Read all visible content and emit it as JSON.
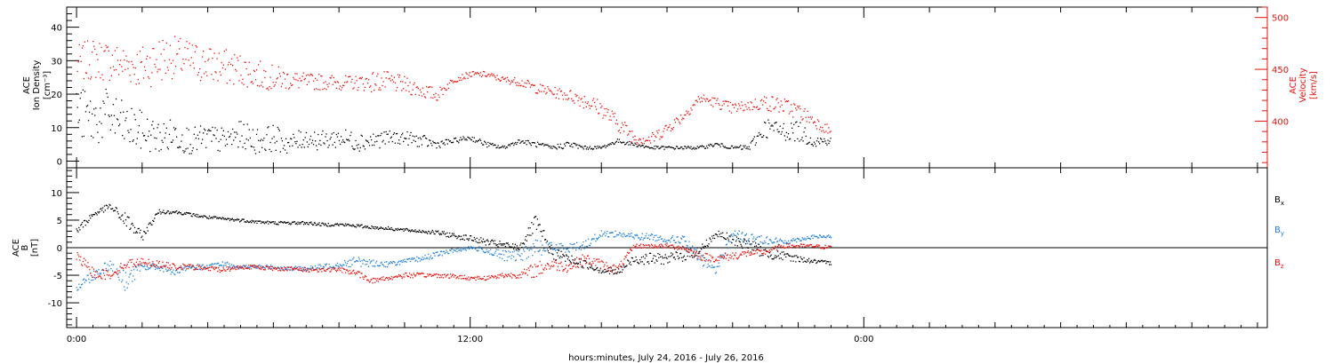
{
  "figure": {
    "xlabel": "hours:minutes, July 24, 2016 - July 26, 2016",
    "x_ticks": [
      {
        "hour": 0,
        "label": "0:00"
      },
      {
        "hour": 12,
        "label": "12:00"
      },
      {
        "hour": 24,
        "label": "0:00"
      }
    ],
    "x_range_hours": [
      -0.3,
      36.3
    ],
    "x_minor_step_hours": 2
  },
  "chart_data": [
    {
      "type": "scatter",
      "panel": "plasma",
      "ylabel_left": [
        "ACE",
        "Ion Density",
        "[cm⁻³]"
      ],
      "ylabel_right": [
        "ACE",
        "Velocity",
        "[km/s]"
      ],
      "ylim_left": [
        -2,
        46
      ],
      "ylim_right": [
        355,
        510
      ],
      "yticks_left": [
        0,
        10,
        20,
        30,
        40
      ],
      "yticks_right": [
        400,
        450,
        500
      ],
      "colors": {
        "density": "#000000",
        "velocity": "#e8110c"
      },
      "series": [
        {
          "axis": "left",
          "color": "#000000",
          "x": [
            0.0,
            0.5,
            1.0,
            1.5,
            2.0,
            2.5,
            3.0,
            3.5,
            4.0,
            4.5,
            5.0,
            5.5,
            6.0,
            6.5,
            7.0,
            7.5,
            8.0,
            8.5,
            9.0,
            9.5,
            10.0,
            10.5,
            11.0,
            11.5,
            12.0,
            12.5,
            13.0,
            13.5,
            14.0,
            14.5,
            15.0,
            15.5,
            16.0,
            16.5,
            17.0,
            17.5,
            18.0,
            18.5,
            19.0,
            19.5,
            20.0,
            20.5,
            21.0,
            21.5,
            22.0,
            22.5,
            23.0
          ],
          "y": [
            15,
            12,
            14,
            10,
            9,
            7,
            8,
            6,
            7,
            6,
            8,
            6,
            7,
            5,
            7,
            6,
            7,
            6,
            6,
            7,
            7,
            6,
            5,
            6,
            7,
            5,
            4,
            6,
            5,
            4,
            5,
            4,
            4,
            6,
            5,
            4,
            4,
            4,
            4,
            5,
            4,
            4,
            10,
            9,
            9,
            6,
            6
          ],
          "scatter": [
            8,
            8,
            8,
            7,
            6,
            5,
            5,
            4,
            4,
            4,
            4,
            4,
            4,
            3,
            3,
            3,
            3,
            3,
            3,
            2,
            2,
            2,
            1.2,
            0.8,
            0.8,
            0.8,
            0.6,
            0.6,
            0.8,
            0.6,
            1.2,
            0.5,
            0.5,
            0.6,
            0.6,
            0.5,
            0.5,
            0.5,
            0.5,
            0.6,
            0.5,
            1,
            3,
            3,
            3,
            2,
            1
          ]
        },
        {
          "axis": "right",
          "color": "#e8110c",
          "x": [
            0.0,
            0.5,
            1.0,
            1.5,
            2.0,
            2.5,
            3.0,
            3.5,
            4.0,
            4.5,
            5.0,
            5.5,
            6.0,
            6.5,
            7.0,
            7.5,
            8.0,
            8.5,
            9.0,
            9.5,
            10.0,
            10.5,
            11.0,
            11.5,
            12.0,
            12.5,
            13.0,
            13.5,
            14.0,
            14.5,
            15.0,
            15.5,
            16.0,
            16.5,
            17.0,
            17.5,
            18.0,
            18.5,
            19.0,
            19.5,
            20.0,
            20.5,
            21.0,
            21.5,
            22.0,
            22.5,
            23.0
          ],
          "y": [
            455,
            460,
            458,
            455,
            452,
            460,
            462,
            458,
            455,
            452,
            450,
            445,
            442,
            440,
            438,
            438,
            437,
            437,
            438,
            438,
            435,
            430,
            425,
            440,
            445,
            445,
            440,
            438,
            432,
            428,
            425,
            420,
            412,
            398,
            385,
            382,
            393,
            405,
            422,
            418,
            412,
            415,
            418,
            415,
            410,
            400,
            390
          ],
          "scatter": [
            18,
            20,
            20,
            18,
            22,
            24,
            20,
            20,
            18,
            18,
            16,
            14,
            12,
            10,
            8,
            8,
            7,
            7,
            10,
            10,
            8,
            8,
            6,
            3,
            3,
            3,
            3,
            4,
            5,
            5,
            6,
            8,
            8,
            8,
            7,
            6,
            6,
            5,
            5,
            5,
            6,
            5,
            8,
            8,
            8,
            6,
            5
          ]
        }
      ]
    },
    {
      "type": "scatter",
      "panel": "magnetic",
      "ylabel_left": [
        "ACE",
        "B",
        "[nT]"
      ],
      "ylim": [
        -14.5,
        14.5
      ],
      "yticks": [
        -10,
        -5,
        0,
        5,
        10
      ],
      "zero_line": true,
      "legend": [
        {
          "label": "B",
          "sub": "x",
          "color": "#000000"
        },
        {
          "label": "B",
          "sub": "y",
          "color": "#1f7fd8"
        },
        {
          "label": "B",
          "sub": "z",
          "color": "#e8110c"
        }
      ],
      "series": [
        {
          "name": "Bx",
          "color": "#000000",
          "x": [
            0.0,
            0.5,
            1.0,
            1.5,
            2.0,
            2.5,
            3.0,
            3.5,
            4.0,
            4.5,
            5.0,
            5.5,
            6.0,
            6.5,
            7.0,
            7.5,
            8.0,
            8.5,
            9.0,
            9.5,
            10.0,
            10.5,
            11.0,
            11.5,
            12.0,
            12.5,
            13.0,
            13.5,
            14.0,
            14.5,
            15.0,
            15.5,
            16.0,
            16.5,
            17.0,
            17.5,
            18.0,
            18.5,
            19.0,
            19.5,
            20.0,
            20.5,
            21.0,
            21.5,
            22.0,
            22.5,
            23.0
          ],
          "y": [
            3,
            6,
            7.5,
            5,
            2,
            6.5,
            6.5,
            6,
            5.5,
            5.2,
            5,
            4.7,
            4.5,
            4.5,
            4.5,
            4.2,
            4.2,
            4,
            3.7,
            3.5,
            3.2,
            3,
            2.7,
            2.2,
            1.7,
            1,
            0.5,
            0,
            4.5,
            -1,
            -2,
            -3,
            -4,
            -4.5,
            -2,
            -2,
            -2,
            -1.5,
            -0.5,
            2.5,
            1.5,
            0.5,
            -1,
            -1.5,
            -2,
            -2.5,
            -2.8
          ],
          "scatter": [
            0.8,
            0.6,
            0.5,
            1.5,
            0.8,
            0.4,
            0.3,
            0.3,
            0.3,
            0.3,
            0.3,
            0.3,
            0.3,
            0.3,
            0.3,
            0.3,
            0.3,
            0.3,
            0.3,
            0.3,
            0.3,
            0.3,
            0.4,
            0.5,
            0.5,
            0.6,
            0.6,
            0.6,
            1.5,
            1.2,
            0.8,
            0.8,
            0.7,
            0.7,
            1,
            1,
            1,
            1,
            1,
            0.6,
            1,
            1.2,
            1,
            0.8,
            0.6,
            0.4,
            0.3
          ]
        },
        {
          "name": "By",
          "color": "#1f7fd8",
          "x": [
            0.0,
            0.5,
            1.0,
            1.5,
            2.0,
            2.5,
            3.0,
            3.5,
            4.0,
            4.5,
            5.0,
            5.5,
            6.0,
            6.5,
            7.0,
            7.5,
            8.0,
            8.5,
            9.0,
            9.5,
            10.0,
            10.5,
            11.0,
            11.5,
            12.0,
            12.5,
            13.0,
            13.5,
            14.0,
            14.5,
            15.0,
            15.5,
            16.0,
            16.5,
            17.0,
            17.5,
            18.0,
            18.5,
            19.0,
            19.5,
            20.0,
            20.5,
            21.0,
            21.5,
            22.0,
            22.5,
            23.0
          ],
          "y": [
            -7,
            -5,
            -3,
            -6,
            -3.5,
            -3.5,
            -4.5,
            -3.5,
            -3.5,
            -3,
            -3.5,
            -3.5,
            -3.5,
            -3.8,
            -3.8,
            -3.5,
            -3,
            -2.5,
            -2.8,
            -3,
            -2.5,
            -2,
            -1.2,
            -0.5,
            0,
            -0.5,
            -1.5,
            -1.5,
            0,
            0,
            0,
            0.5,
            2.5,
            2.5,
            2,
            2,
            1.5,
            1.5,
            -2,
            -4,
            2.5,
            1.5,
            1.5,
            1,
            1.5,
            2,
            2
          ],
          "scatter": [
            1,
            1,
            1,
            2,
            0.8,
            0.6,
            0.6,
            0.5,
            0.5,
            0.5,
            0.4,
            0.4,
            0.4,
            0.4,
            0.4,
            0.5,
            0.6,
            1,
            0.6,
            0.5,
            0.4,
            0.5,
            0.5,
            0.4,
            0.4,
            0.5,
            1,
            1,
            1.5,
            1,
            0.8,
            0.8,
            0.6,
            0.6,
            0.6,
            0.6,
            0.6,
            0.8,
            1,
            0.8,
            1,
            1,
            0.8,
            0.6,
            0.4,
            0.3,
            0.3
          ]
        },
        {
          "name": "Bz",
          "color": "#e8110c",
          "x": [
            0.0,
            0.5,
            1.0,
            1.5,
            2.0,
            2.5,
            3.0,
            3.5,
            4.0,
            4.5,
            5.0,
            5.5,
            6.0,
            6.5,
            7.0,
            7.5,
            8.0,
            8.5,
            9.0,
            9.5,
            10.0,
            10.5,
            11.0,
            11.5,
            12.0,
            12.5,
            13.0,
            13.5,
            14.0,
            14.5,
            15.0,
            15.5,
            16.0,
            16.5,
            17.0,
            17.5,
            18.0,
            18.5,
            19.0,
            19.5,
            20.0,
            20.5,
            21.0,
            21.5,
            22.0,
            22.5,
            23.0
          ],
          "y": [
            -1.5,
            -4.5,
            -5,
            -3,
            -2.5,
            -3,
            -3.5,
            -3.5,
            -3.8,
            -4,
            -3.5,
            -3.5,
            -3.8,
            -3.8,
            -4,
            -4,
            -4,
            -4.5,
            -6,
            -5.5,
            -5,
            -5,
            -5,
            -5.2,
            -5.5,
            -5.5,
            -5,
            -5,
            -4,
            -3,
            -3.5,
            -2,
            -3,
            -4,
            0.3,
            0.3,
            0.3,
            0,
            -1.5,
            -2,
            -1.5,
            -1,
            -0.8,
            0.3,
            0.3,
            0.3,
            0
          ],
          "scatter": [
            0.8,
            1,
            0.8,
            0.8,
            0.6,
            0.6,
            0.6,
            0.5,
            0.5,
            0.5,
            0.4,
            0.4,
            0.4,
            0.4,
            0.4,
            0.4,
            0.4,
            0.5,
            0.5,
            0.5,
            0.5,
            0.4,
            0.4,
            0.4,
            0.4,
            0.4,
            0.5,
            0.5,
            1.5,
            1,
            1,
            1,
            0.8,
            0.8,
            0.4,
            0.4,
            0.4,
            0.5,
            0.8,
            0.6,
            0.8,
            0.6,
            0.5,
            0.4,
            0.4,
            0.3,
            0.4
          ]
        }
      ]
    }
  ]
}
